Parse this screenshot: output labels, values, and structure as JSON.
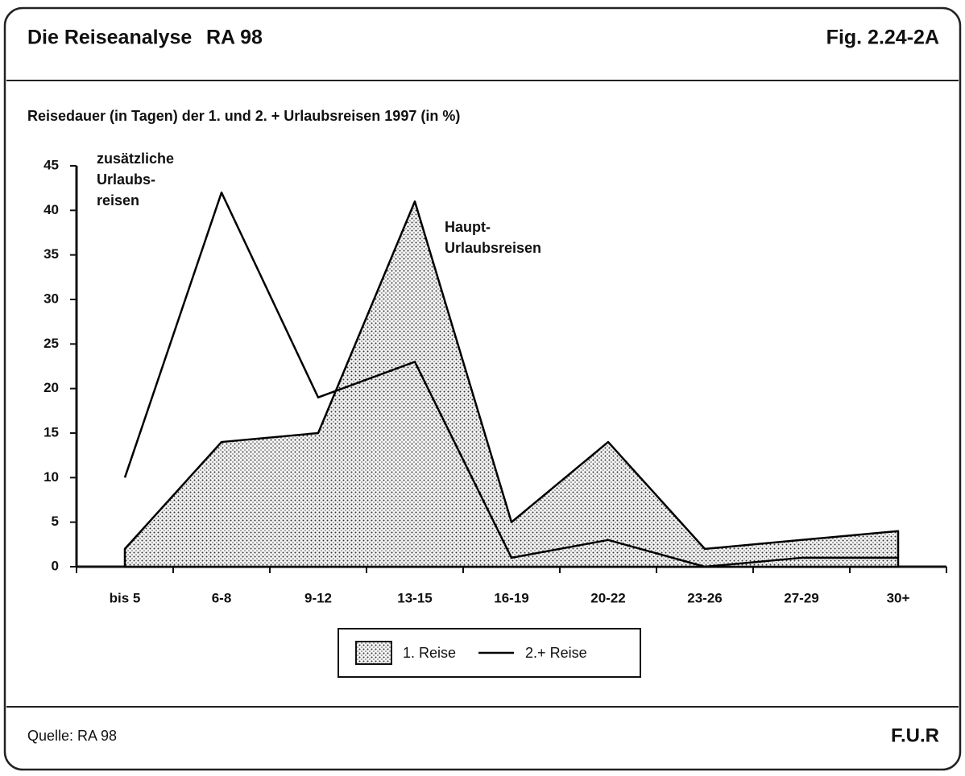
{
  "header": {
    "title": "Die Reiseanalyse",
    "edition": "RA 98",
    "figure": "Fig. 2.24-2A"
  },
  "footer": {
    "source": "Quelle: RA 98",
    "publisher": "F.U.R"
  },
  "chart_data": {
    "type": "line",
    "title": "Reisedauer (in Tagen)  der 1.  und  2. +  Urlaubsreisen 1997 (in %)",
    "categories": [
      "bis 5",
      "6-8",
      "9-12",
      "13-15",
      "16-19",
      "20-22",
      "23-26",
      "27-29",
      "30+"
    ],
    "series": [
      {
        "name": "1. Reise",
        "kind": "area",
        "color": "#000000",
        "values": [
          2,
          14,
          15,
          41,
          5,
          14,
          2,
          3,
          4
        ]
      },
      {
        "name": "2.+ Reise",
        "kind": "line",
        "color": "#000000",
        "values": [
          10,
          42,
          19,
          23,
          1,
          3,
          0,
          1,
          1
        ]
      }
    ],
    "ylim": [
      0,
      45
    ],
    "yticks": [
      0,
      5,
      10,
      15,
      20,
      25,
      30,
      35,
      40,
      45
    ],
    "annotations": [
      {
        "lines": [
          "zusätzliche",
          "Urlaubs-",
          "reisen"
        ]
      },
      {
        "lines": [
          "Haupt-",
          "Urlaubsreisen"
        ]
      }
    ]
  }
}
